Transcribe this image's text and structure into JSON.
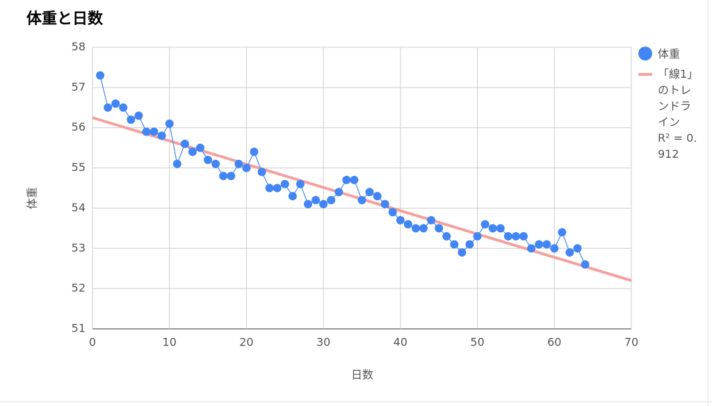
{
  "chart_data": {
    "type": "line",
    "title": "体重と日数",
    "x_label": "日数",
    "y_label": "体重",
    "x": [
      1,
      2,
      3,
      4,
      5,
      6,
      7,
      8,
      9,
      10,
      11,
      12,
      13,
      14,
      15,
      16,
      17,
      18,
      19,
      20,
      21,
      22,
      23,
      24,
      25,
      26,
      27,
      28,
      29,
      30,
      31,
      32,
      33,
      34,
      35,
      36,
      37,
      38,
      39,
      40,
      41,
      42,
      43,
      44,
      45,
      46,
      47,
      48,
      49,
      50,
      51,
      52,
      53,
      54,
      55,
      56,
      57,
      58,
      59,
      60,
      61,
      62,
      63,
      64
    ],
    "series": [
      {
        "name": "体重",
        "color": "#4285f4",
        "values": [
          57.3,
          56.5,
          56.6,
          56.5,
          56.2,
          56.3,
          55.9,
          55.9,
          55.8,
          56.1,
          55.1,
          55.6,
          55.4,
          55.5,
          55.2,
          55.1,
          54.8,
          54.8,
          55.1,
          55.0,
          55.4,
          54.9,
          54.5,
          54.5,
          54.6,
          54.3,
          54.6,
          54.1,
          54.2,
          54.1,
          54.2,
          54.4,
          54.7,
          54.7,
          54.2,
          54.4,
          54.3,
          54.1,
          53.9,
          53.7,
          53.6,
          53.5,
          53.5,
          53.7,
          53.5,
          53.3,
          53.1,
          52.9,
          53.1,
          53.3,
          53.6,
          53.5,
          53.5,
          53.3,
          53.3,
          53.3,
          53.0,
          53.1,
          53.1,
          53.0,
          53.4,
          52.9,
          53.0,
          52.6
        ]
      }
    ],
    "trendline": {
      "name": "「線1」のトレンドライン",
      "label": "R² = 0.912",
      "color": "#f4a19d",
      "x": [
        0,
        70
      ],
      "values": [
        56.25,
        52.2
      ]
    },
    "xlim": [
      0,
      70
    ],
    "xticks": [
      0,
      10,
      20,
      30,
      40,
      50,
      60,
      70
    ],
    "ylim": [
      51,
      58
    ],
    "yticks": [
      51,
      52,
      53,
      54,
      55,
      56,
      57,
      58
    ],
    "grid": true
  }
}
